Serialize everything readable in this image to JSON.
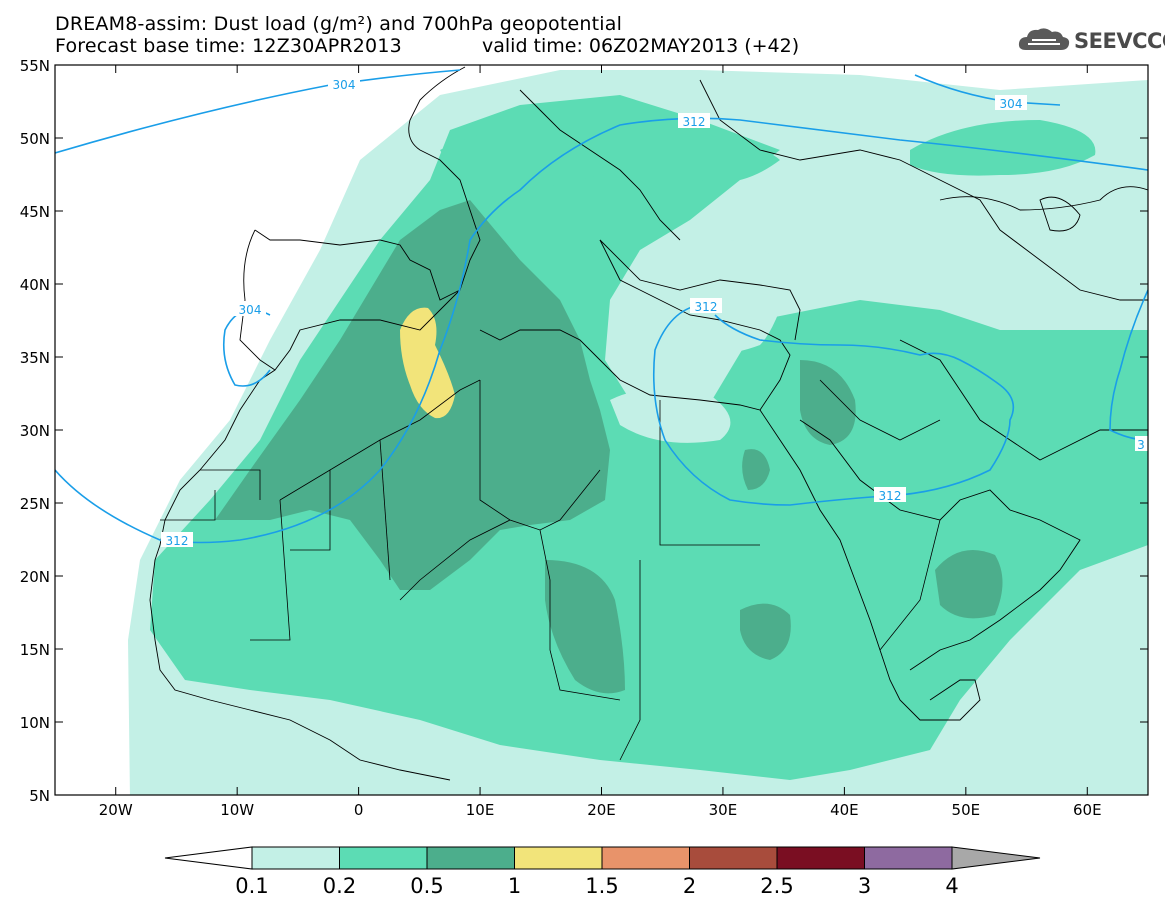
{
  "title": {
    "line1": "DREAM8-assim: Dust load (g/m²) and 700hPa geopotential",
    "line2": "Forecast base time: 12Z30APR2013",
    "valid": "valid time: 06Z02MAY2013 (+42)"
  },
  "logo": {
    "text": "SEEVCCC",
    "icon": "cloud-icon"
  },
  "map": {
    "lon_range": [
      -25,
      65
    ],
    "lat_range": [
      5,
      55
    ],
    "lon_ticks": [
      "20W",
      "10W",
      "0",
      "10E",
      "20E",
      "30E",
      "40E",
      "50E",
      "60E"
    ],
    "lat_ticks": [
      "55N",
      "50N",
      "45N",
      "40N",
      "35N",
      "30N",
      "25N",
      "20N",
      "15N",
      "10N",
      "5N"
    ],
    "contour_labels": [
      "304",
      "304",
      "304",
      "312",
      "312",
      "312",
      "312",
      "3"
    ]
  },
  "colorbar": {
    "labels": [
      "0.1",
      "0.2",
      "0.5",
      "1",
      "1.5",
      "2",
      "2.5",
      "3",
      "4"
    ],
    "colors": [
      "#ffffff",
      "#c3f0e6",
      "#5cdcb4",
      "#4cae8c",
      "#f2e47a",
      "#e8936a",
      "#a84c3c",
      "#7a0e22",
      "#8e6aa0",
      "#a8a8a8"
    ]
  },
  "colors": {
    "light": "#c3f0e6",
    "medium": "#5cdcb4",
    "dark": "#4cae8c",
    "yellow": "#f2e47a",
    "contour": "#1a9ee8"
  }
}
